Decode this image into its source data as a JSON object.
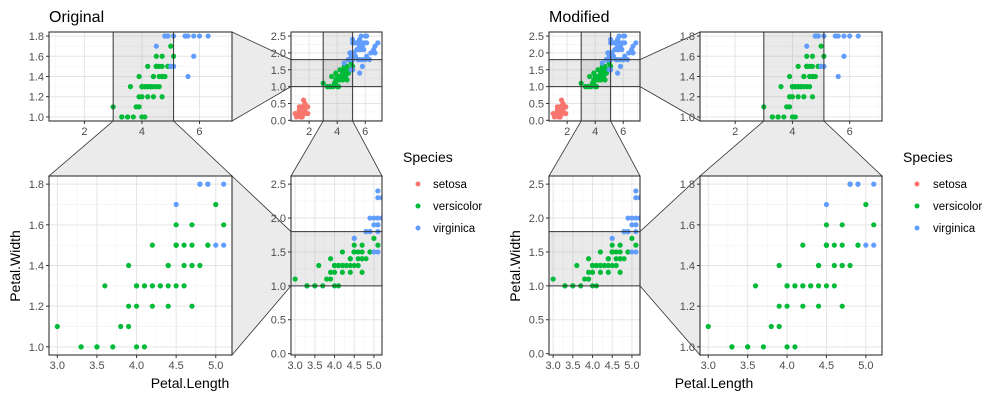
{
  "chart_data": {
    "type": "scatter",
    "figures": [
      {
        "title": "Original",
        "xlabel": "Petal.Length",
        "ylabel": "Petal.Width",
        "zoom_x_range": [
          3.0,
          5.1
        ],
        "zoom_y_range": [
          1.0,
          1.8
        ],
        "panels": {
          "zoom_x": {
            "xlim": [
              0.77,
              7.13
            ],
            "ylim": [
              0.96,
              1.84
            ],
            "xticks": [
              "2",
              "4",
              "6"
            ],
            "yticks": [
              "1.0",
              "1.2",
              "1.4",
              "1.6",
              "1.8"
            ]
          },
          "overview": {
            "xlim": [
              0.705,
              7.195
            ],
            "ylim": [
              -0.02,
              2.62
            ],
            "xticks": [
              "2",
              "4",
              "6"
            ],
            "yticks": [
              "0.0",
              "0.5",
              "1.0",
              "1.5",
              "2.0",
              "2.5"
            ]
          },
          "zoom_xy": {
            "xlim": [
              2.895,
              5.205
            ],
            "ylim": [
              0.96,
              1.84
            ],
            "xticks": [
              "3.0",
              "3.5",
              "4.0",
              "4.5",
              "5.0"
            ],
            "yticks": [
              "1.0",
              "1.2",
              "1.4",
              "1.6",
              "1.8"
            ]
          },
          "zoom_y": {
            "xlim": [
              2.895,
              5.205
            ],
            "ylim": [
              -0.02,
              2.62
            ],
            "xticks": [
              "3.0",
              "3.5",
              "4.0",
              "4.5",
              "5.0"
            ],
            "yticks": [
              "0.0",
              "0.5",
              "1.0",
              "1.5",
              "2.0",
              "2.5"
            ]
          }
        }
      },
      {
        "title": "Modified",
        "xlabel": "Petal.Length",
        "ylabel": "Petal.Width",
        "zoom_x_range": [
          3.0,
          5.1
        ],
        "zoom_y_range": [
          1.0,
          1.8
        ],
        "panels": {
          "overview": {
            "xlim": [
              0.705,
              7.195
            ],
            "ylim": [
              -0.02,
              2.62
            ],
            "xticks": [
              "2",
              "4",
              "6"
            ],
            "yticks": [
              "0.0",
              "0.5",
              "1.0",
              "1.5",
              "2.0",
              "2.5"
            ]
          },
          "zoom_x": {
            "xlim": [
              0.77,
              7.13
            ],
            "ylim": [
              0.96,
              1.84
            ],
            "xticks": [
              "2",
              "4",
              "6"
            ],
            "yticks": [
              "1.0",
              "1.2",
              "1.4",
              "1.6",
              "1.8"
            ]
          },
          "zoom_y": {
            "xlim": [
              2.895,
              5.205
            ],
            "ylim": [
              -0.02,
              2.62
            ],
            "xticks": [
              "3.0",
              "3.5",
              "4.0",
              "4.5",
              "5.0"
            ],
            "yticks": [
              "0.0",
              "0.5",
              "1.0",
              "1.5",
              "2.0",
              "2.5"
            ]
          },
          "zoom_xy": {
            "xlim": [
              2.895,
              5.205
            ],
            "ylim": [
              0.96,
              1.84
            ],
            "xticks": [
              "3.0",
              "3.5",
              "4.0",
              "4.5",
              "5.0"
            ],
            "yticks": [
              "1.0",
              "1.2",
              "1.4",
              "1.6",
              "1.8"
            ]
          }
        }
      }
    ],
    "legend": {
      "title": "Species",
      "position": "right",
      "entries": [
        {
          "label": "setosa",
          "color": "#F8766D"
        },
        {
          "label": "versicolor",
          "color": "#00BA38"
        },
        {
          "label": "virginica",
          "color": "#619CFF"
        }
      ]
    },
    "series": [
      {
        "name": "setosa",
        "color": "#F8766D",
        "points": [
          [
            1.4,
            0.2
          ],
          [
            1.4,
            0.2
          ],
          [
            1.3,
            0.2
          ],
          [
            1.5,
            0.2
          ],
          [
            1.4,
            0.2
          ],
          [
            1.7,
            0.4
          ],
          [
            1.4,
            0.3
          ],
          [
            1.5,
            0.2
          ],
          [
            1.4,
            0.2
          ],
          [
            1.5,
            0.1
          ],
          [
            1.5,
            0.2
          ],
          [
            1.6,
            0.2
          ],
          [
            1.4,
            0.1
          ],
          [
            1.1,
            0.1
          ],
          [
            1.2,
            0.2
          ],
          [
            1.5,
            0.4
          ],
          [
            1.3,
            0.4
          ],
          [
            1.4,
            0.3
          ],
          [
            1.7,
            0.3
          ],
          [
            1.5,
            0.3
          ],
          [
            1.7,
            0.2
          ],
          [
            1.5,
            0.4
          ],
          [
            1.0,
            0.2
          ],
          [
            1.7,
            0.5
          ],
          [
            1.9,
            0.2
          ],
          [
            1.6,
            0.2
          ],
          [
            1.6,
            0.4
          ],
          [
            1.5,
            0.2
          ],
          [
            1.4,
            0.2
          ],
          [
            1.6,
            0.2
          ],
          [
            1.6,
            0.2
          ],
          [
            1.5,
            0.4
          ],
          [
            1.5,
            0.1
          ],
          [
            1.4,
            0.2
          ],
          [
            1.5,
            0.2
          ],
          [
            1.2,
            0.2
          ],
          [
            1.3,
            0.2
          ],
          [
            1.4,
            0.1
          ],
          [
            1.3,
            0.2
          ],
          [
            1.5,
            0.2
          ],
          [
            1.3,
            0.3
          ],
          [
            1.3,
            0.3
          ],
          [
            1.3,
            0.2
          ],
          [
            1.6,
            0.6
          ],
          [
            1.9,
            0.4
          ],
          [
            1.4,
            0.3
          ],
          [
            1.6,
            0.2
          ],
          [
            1.4,
            0.2
          ],
          [
            1.5,
            0.2
          ],
          [
            1.4,
            0.2
          ]
        ]
      },
      {
        "name": "versicolor",
        "color": "#00BA38",
        "points": [
          [
            4.7,
            1.4
          ],
          [
            4.5,
            1.5
          ],
          [
            4.9,
            1.5
          ],
          [
            4.0,
            1.3
          ],
          [
            4.6,
            1.5
          ],
          [
            4.5,
            1.3
          ],
          [
            4.7,
            1.6
          ],
          [
            3.3,
            1.0
          ],
          [
            4.6,
            1.3
          ],
          [
            3.9,
            1.4
          ],
          [
            3.5,
            1.0
          ],
          [
            4.2,
            1.5
          ],
          [
            4.0,
            1.0
          ],
          [
            4.7,
            1.4
          ],
          [
            3.6,
            1.3
          ],
          [
            4.4,
            1.4
          ],
          [
            4.5,
            1.5
          ],
          [
            4.1,
            1.0
          ],
          [
            4.5,
            1.5
          ],
          [
            3.9,
            1.1
          ],
          [
            4.8,
            1.8
          ],
          [
            4.0,
            1.3
          ],
          [
            4.9,
            1.5
          ],
          [
            4.7,
            1.2
          ],
          [
            4.3,
            1.3
          ],
          [
            4.4,
            1.4
          ],
          [
            4.8,
            1.4
          ],
          [
            5.0,
            1.7
          ],
          [
            4.5,
            1.5
          ],
          [
            3.5,
            1.0
          ],
          [
            3.8,
            1.1
          ],
          [
            3.7,
            1.0
          ],
          [
            3.9,
            1.2
          ],
          [
            5.1,
            1.6
          ],
          [
            4.5,
            1.5
          ],
          [
            4.5,
            1.6
          ],
          [
            4.7,
            1.5
          ],
          [
            4.4,
            1.3
          ],
          [
            4.1,
            1.3
          ],
          [
            4.0,
            1.3
          ],
          [
            4.4,
            1.2
          ],
          [
            4.6,
            1.4
          ],
          [
            4.0,
            1.2
          ],
          [
            3.3,
            1.0
          ],
          [
            4.2,
            1.3
          ],
          [
            4.2,
            1.2
          ],
          [
            4.2,
            1.3
          ],
          [
            4.3,
            1.3
          ],
          [
            3.0,
            1.1
          ],
          [
            4.1,
            1.3
          ]
        ]
      },
      {
        "name": "virginica",
        "color": "#619CFF",
        "points": [
          [
            6.0,
            2.5
          ],
          [
            5.1,
            1.9
          ],
          [
            5.9,
            2.1
          ],
          [
            5.6,
            1.8
          ],
          [
            5.8,
            2.2
          ],
          [
            6.6,
            2.1
          ],
          [
            4.5,
            1.7
          ],
          [
            6.3,
            1.8
          ],
          [
            5.8,
            1.8
          ],
          [
            6.1,
            2.5
          ],
          [
            5.1,
            2.0
          ],
          [
            5.3,
            1.9
          ],
          [
            5.5,
            2.1
          ],
          [
            5.0,
            2.0
          ],
          [
            5.1,
            2.4
          ],
          [
            5.3,
            2.3
          ],
          [
            5.5,
            1.8
          ],
          [
            6.7,
            2.2
          ],
          [
            6.9,
            2.3
          ],
          [
            5.0,
            1.5
          ],
          [
            5.7,
            2.3
          ],
          [
            4.9,
            2.0
          ],
          [
            6.7,
            2.0
          ],
          [
            4.9,
            1.8
          ],
          [
            5.7,
            2.1
          ],
          [
            6.0,
            1.8
          ],
          [
            4.8,
            1.8
          ],
          [
            4.9,
            1.8
          ],
          [
            5.6,
            2.1
          ],
          [
            5.8,
            1.6
          ],
          [
            6.1,
            1.9
          ],
          [
            6.4,
            2.0
          ],
          [
            5.6,
            2.2
          ],
          [
            5.1,
            1.5
          ],
          [
            5.6,
            1.4
          ],
          [
            6.1,
            2.3
          ],
          [
            5.6,
            2.4
          ],
          [
            5.5,
            1.8
          ],
          [
            4.8,
            1.8
          ],
          [
            5.4,
            2.1
          ],
          [
            5.6,
            2.4
          ],
          [
            5.1,
            2.3
          ],
          [
            5.1,
            1.9
          ],
          [
            5.9,
            2.3
          ],
          [
            5.7,
            2.5
          ],
          [
            5.2,
            2.3
          ],
          [
            5.0,
            1.9
          ],
          [
            5.2,
            2.0
          ],
          [
            5.4,
            2.3
          ],
          [
            5.1,
            1.8
          ]
        ]
      }
    ]
  }
}
